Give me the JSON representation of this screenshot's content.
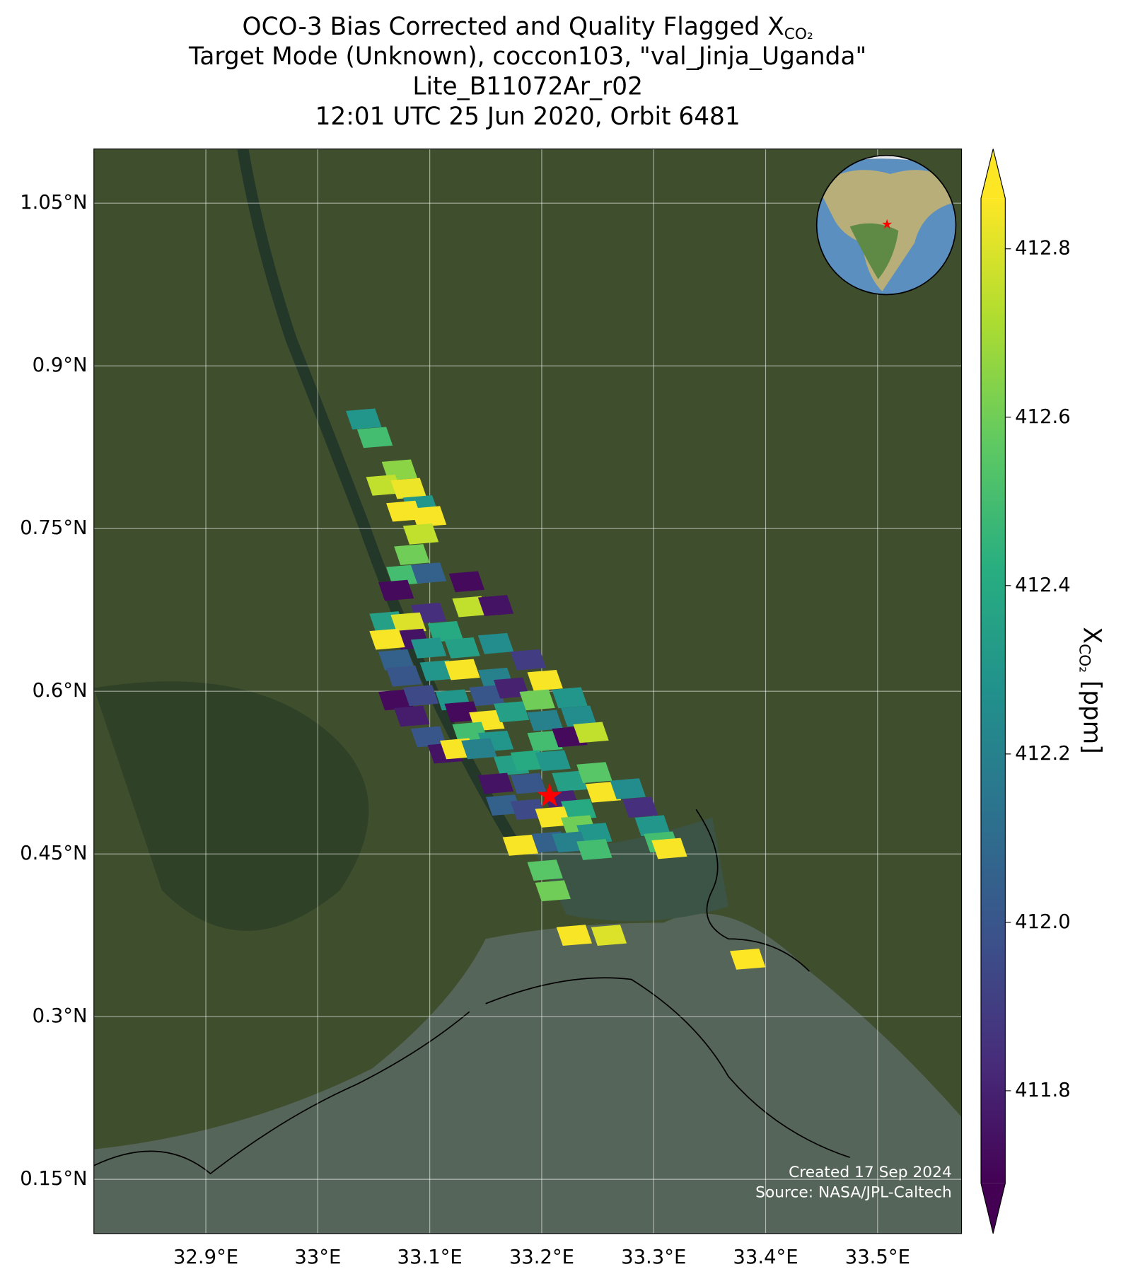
{
  "chart_data": {
    "type": "map",
    "title": [
      "OCO-3 Bias Corrected and Quality Flagged X",
      "Target Mode (Unknown), coccon103, \"val_Jinja_Uganda\"",
      "Lite_B11072Ar_r02",
      "12:01 UTC 25 Jun 2020, Orbit 6481"
    ],
    "title_subscript": "CO₂",
    "xlim": [
      32.8,
      33.575
    ],
    "ylim": [
      0.1,
      1.1
    ],
    "xticks": [
      {
        "value": 32.9,
        "label": "32.9°E"
      },
      {
        "value": 33.0,
        "label": "33°E"
      },
      {
        "value": 33.1,
        "label": "33.1°E"
      },
      {
        "value": 33.2,
        "label": "33.2°E"
      },
      {
        "value": 33.3,
        "label": "33.3°E"
      },
      {
        "value": 33.4,
        "label": "33.4°E"
      },
      {
        "value": 33.5,
        "label": "33.5°E"
      }
    ],
    "yticks": [
      {
        "value": 0.15,
        "label": "0.15°N"
      },
      {
        "value": 0.3,
        "label": "0.3°N"
      },
      {
        "value": 0.45,
        "label": "0.45°N"
      },
      {
        "value": 0.6,
        "label": "0.6°N"
      },
      {
        "value": 0.75,
        "label": "0.75°N"
      },
      {
        "value": 0.9,
        "label": "0.9°N"
      },
      {
        "value": 1.05,
        "label": "1.05°N"
      }
    ],
    "grid": true,
    "colorbar": {
      "clim": [
        411.69,
        412.86
      ],
      "colormap": "viridis",
      "extend": "both",
      "ticks": [
        {
          "value": 411.8,
          "label": "411.8"
        },
        {
          "value": 412.0,
          "label": "412.0"
        },
        412.2,
        412.4,
        412.6,
        412.8
      ],
      "label": {
        "main": "X",
        "sub": "CO₂",
        "unit": " [ppm]"
      }
    },
    "soundings": {
      "lon": [
        33.041,
        33.051,
        33.073,
        33.059,
        33.081,
        33.092,
        33.077,
        33.099,
        33.092,
        33.084,
        33.077,
        33.099,
        33.133,
        33.07,
        33.099,
        33.136,
        33.159,
        33.062,
        33.081,
        33.084,
        33.114,
        33.062,
        33.07,
        33.099,
        33.129,
        33.159,
        33.077,
        33.107,
        33.129,
        33.159,
        33.188,
        33.07,
        33.092,
        33.121,
        33.151,
        33.173,
        33.203,
        33.196,
        33.225,
        33.084,
        33.129,
        33.151,
        33.173,
        33.203,
        33.233,
        33.099,
        33.136,
        33.159,
        33.203,
        33.225,
        33.244,
        33.114,
        33.125,
        33.144,
        33.173,
        33.188,
        33.21,
        33.159,
        33.188,
        33.225,
        33.247,
        33.255,
        33.277,
        33.166,
        33.188,
        33.218,
        33.233,
        33.21,
        33.288,
        33.233,
        33.247,
        33.299,
        33.307,
        33.181,
        33.207,
        33.225,
        33.247,
        33.314,
        33.203,
        33.21,
        33.229,
        33.26,
        33.384
      ],
      "lat": [
        0.851,
        0.834,
        0.804,
        0.79,
        0.787,
        0.771,
        0.766,
        0.761,
        0.745,
        0.726,
        0.707,
        0.709,
        0.701,
        0.693,
        0.672,
        0.678,
        0.679,
        0.664,
        0.663,
        0.648,
        0.655,
        0.648,
        0.629,
        0.64,
        0.64,
        0.644,
        0.614,
        0.619,
        0.62,
        0.612,
        0.629,
        0.592,
        0.596,
        0.592,
        0.596,
        0.603,
        0.61,
        0.592,
        0.594,
        0.577,
        0.581,
        0.573,
        0.581,
        0.573,
        0.577,
        0.558,
        0.562,
        0.554,
        0.554,
        0.558,
        0.562,
        0.543,
        0.547,
        0.547,
        0.532,
        0.536,
        0.536,
        0.515,
        0.515,
        0.517,
        0.525,
        0.507,
        0.51,
        0.495,
        0.491,
        0.499,
        0.491,
        0.484,
        0.493,
        0.476,
        0.469,
        0.476,
        0.461,
        0.458,
        0.461,
        0.461,
        0.454,
        0.455,
        0.435,
        0.416,
        0.375,
        0.375,
        0.353
      ],
      "xco2": [
        412.3,
        412.5,
        412.65,
        412.75,
        412.83,
        412.3,
        412.85,
        412.85,
        412.75,
        412.6,
        412.5,
        412.05,
        411.72,
        411.72,
        411.85,
        412.75,
        411.75,
        412.35,
        412.8,
        411.75,
        412.4,
        412.85,
        412.05,
        412.3,
        412.35,
        412.25,
        412.0,
        412.3,
        412.85,
        412.2,
        411.9,
        411.72,
        411.95,
        412.3,
        412.0,
        411.8,
        412.85,
        412.6,
        412.3,
        411.78,
        411.72,
        412.85,
        412.35,
        412.2,
        412.25,
        412.0,
        412.5,
        412.3,
        412.5,
        411.72,
        412.75,
        411.75,
        412.85,
        412.2,
        412.35,
        412.4,
        412.3,
        411.75,
        412.0,
        412.35,
        412.55,
        412.85,
        412.25,
        412.05,
        411.95,
        411.8,
        412.4,
        412.85,
        411.85,
        412.6,
        412.3,
        412.3,
        412.5,
        412.85,
        412.05,
        412.2,
        412.5,
        412.85,
        412.55,
        412.6,
        412.85,
        412.8,
        412.87
      ]
    },
    "target": {
      "lon": 33.207,
      "lat": 0.502
    },
    "credits": [
      "Created 17 Sep 2024",
      "Source: NASA/JPL-Caltech"
    ]
  }
}
